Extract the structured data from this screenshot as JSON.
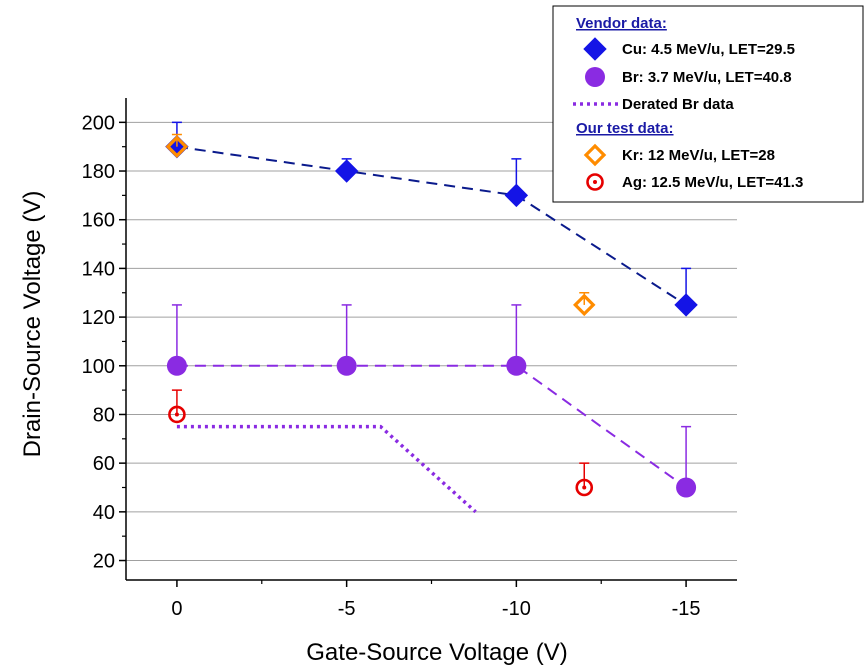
{
  "chart_data": {
    "type": "scatter",
    "xlabel": "Gate-Source Voltage (V)",
    "ylabel": "Drain-Source Voltage (V)",
    "xlim": [
      1.5,
      -16.5
    ],
    "ylim": [
      12,
      210
    ],
    "x_ticks": [
      0,
      -5,
      -10,
      -15
    ],
    "x_tick_labels": [
      "0",
      "-5",
      "-10",
      "-15"
    ],
    "y_ticks": [
      20,
      40,
      60,
      80,
      100,
      120,
      140,
      160,
      180,
      200
    ],
    "y_tick_labels": [
      "20",
      "40",
      "60",
      "80",
      "100",
      "120",
      "140",
      "160",
      "180",
      "200"
    ],
    "grid": "horizontal",
    "legend": {
      "placement": "top-right",
      "vendor_heading": "Vendor data:",
      "test_heading": "Our test data:"
    },
    "series": [
      {
        "name": "Cu: 4.5 MeV/u, LET=29.5",
        "group": "vendor",
        "marker": "diamond-filled",
        "color": "#1414e6",
        "line_color": "#0a1a8c",
        "line_style": "dashed",
        "x": [
          0,
          -5,
          -10,
          -15
        ],
        "y": [
          190,
          180,
          170,
          125
        ],
        "error_upper": [
          200,
          185,
          185,
          140
        ]
      },
      {
        "name": "Br: 3.7 MeV/u, LET=40.8",
        "group": "vendor",
        "marker": "circle-filled",
        "color": "#8a2be2",
        "line_color": "#8a2be2",
        "line_style": "dashed",
        "x": [
          0,
          -5,
          -10,
          -15
        ],
        "y": [
          100,
          100,
          100,
          50
        ],
        "error_upper": [
          125,
          125,
          125,
          75
        ]
      },
      {
        "name": "Derated Br data",
        "group": "vendor",
        "marker": "none",
        "color": "#8a2be2",
        "line_style": "dotted",
        "x": [
          0,
          -6,
          -8.8
        ],
        "y": [
          75,
          75,
          40
        ]
      },
      {
        "name": "Kr: 12 MeV/u, LET=28",
        "group": "test",
        "marker": "diamond-open",
        "color": "#ff8c00",
        "x": [
          0,
          -12
        ],
        "y": [
          190,
          125
        ],
        "error_upper": [
          195,
          130
        ]
      },
      {
        "name": "Ag: 12.5 MeV/u, LET=41.3",
        "group": "test",
        "marker": "circle-open-dot",
        "color": "#e60000",
        "x": [
          0,
          -12
        ],
        "y": [
          80,
          50
        ],
        "error_upper": [
          90,
          60
        ]
      }
    ]
  }
}
